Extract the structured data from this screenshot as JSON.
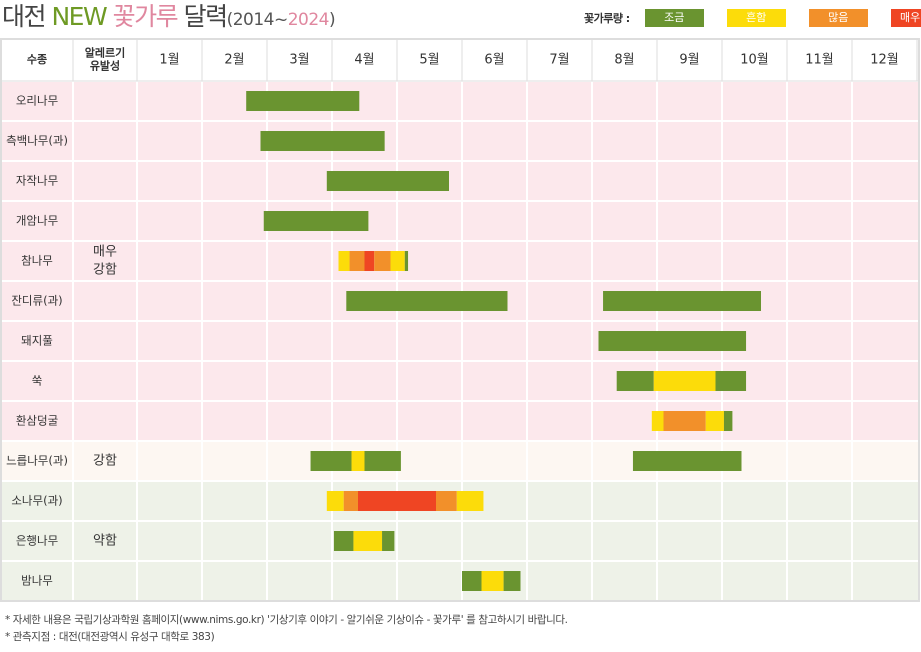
{
  "title": {
    "part1": "대전 ",
    "part2": "NEW ",
    "part3": "꽃가루",
    "part4": " 달력",
    "years_open": "(2014~",
    "years_end": "2024",
    "years_close": ")"
  },
  "legend": {
    "label": "꽃가루량 :",
    "items": [
      {
        "label": "조금",
        "color": "#6a9430"
      },
      {
        "label": "흔함",
        "color": "#fcdc0a"
      },
      {
        "label": "많음",
        "color": "#f2902a"
      },
      {
        "label": "매우많음",
        "color": "#ef4523"
      }
    ]
  },
  "table_headers": {
    "species": "수종",
    "allergy": "알레르기\n유발성"
  },
  "months": [
    "1월",
    "2월",
    "3월",
    "4월",
    "5월",
    "6월",
    "7월",
    "8월",
    "9월",
    "10월",
    "11월",
    "12월"
  ],
  "colors": {
    "low": "#6a9430",
    "common": "#fcdc0a",
    "many": "#f2902a",
    "very_many": "#ef4523",
    "bg_strong_very": "#fce8ec",
    "bg_strong": "#fdf7f2",
    "bg_weak": "#eef2e8",
    "grid": "#ffffff",
    "frame": "#dddddd"
  },
  "chart_data": {
    "type": "calendar",
    "x_axis": "month (decimal, 1.0 = 1월 시작)",
    "groups": [
      {
        "label": "매우\n강함",
        "key": "strong_very",
        "rows": 9
      },
      {
        "label": "강함",
        "key": "strong",
        "rows": 1
      },
      {
        "label": "약함",
        "key": "weak",
        "rows": 3
      }
    ],
    "species": [
      {
        "name": "오리나무",
        "segments": [
          {
            "from": 2.68,
            "to": 4.42,
            "level": "low"
          }
        ]
      },
      {
        "name": "측백나무(과)",
        "segments": [
          {
            "from": 2.9,
            "to": 4.81,
            "level": "low"
          }
        ]
      },
      {
        "name": "자작나무",
        "segments": [
          {
            "from": 3.92,
            "to": 5.8,
            "level": "low"
          }
        ]
      },
      {
        "name": "개암나무",
        "segments": [
          {
            "from": 2.95,
            "to": 4.56,
            "level": "low"
          }
        ]
      },
      {
        "name": "참나무",
        "segments": [
          {
            "from": 4.1,
            "to": 4.27,
            "level": "common"
          },
          {
            "from": 4.27,
            "to": 4.5,
            "level": "many"
          },
          {
            "from": 4.5,
            "to": 4.65,
            "level": "very_many"
          },
          {
            "from": 4.65,
            "to": 4.9,
            "level": "many"
          },
          {
            "from": 4.9,
            "to": 5.12,
            "level": "common"
          },
          {
            "from": 5.12,
            "to": 5.17,
            "level": "low"
          }
        ]
      },
      {
        "name": "잔디류(과)",
        "segments": [
          {
            "from": 4.22,
            "to": 6.7,
            "level": "low"
          },
          {
            "from": 8.17,
            "to": 10.6,
            "level": "low"
          }
        ]
      },
      {
        "name": "돼지풀",
        "segments": [
          {
            "from": 8.1,
            "to": 10.37,
            "level": "low"
          }
        ]
      },
      {
        "name": "쑥",
        "segments": [
          {
            "from": 8.38,
            "to": 8.95,
            "level": "low"
          },
          {
            "from": 8.95,
            "to": 9.9,
            "level": "common"
          },
          {
            "from": 9.9,
            "to": 10.37,
            "level": "low"
          }
        ]
      },
      {
        "name": "환삼덩굴",
        "segments": [
          {
            "from": 8.92,
            "to": 9.1,
            "level": "common"
          },
          {
            "from": 9.1,
            "to": 9.75,
            "level": "many"
          },
          {
            "from": 9.75,
            "to": 10.03,
            "level": "common"
          },
          {
            "from": 10.03,
            "to": 10.16,
            "level": "low"
          }
        ]
      },
      {
        "name": "느릅나무(과)",
        "segments": [
          {
            "from": 3.67,
            "to": 4.3,
            "level": "low"
          },
          {
            "from": 4.3,
            "to": 4.5,
            "level": "common"
          },
          {
            "from": 4.5,
            "to": 5.06,
            "level": "low"
          },
          {
            "from": 8.63,
            "to": 10.3,
            "level": "low"
          }
        ]
      },
      {
        "name": "소나무(과)",
        "segments": [
          {
            "from": 3.92,
            "to": 4.18,
            "level": "common"
          },
          {
            "from": 4.18,
            "to": 4.4,
            "level": "many"
          },
          {
            "from": 4.4,
            "to": 5.6,
            "level": "very_many"
          },
          {
            "from": 5.6,
            "to": 5.92,
            "level": "many"
          },
          {
            "from": 5.92,
            "to": 6.33,
            "level": "common"
          }
        ]
      },
      {
        "name": "은행나무",
        "segments": [
          {
            "from": 4.03,
            "to": 4.33,
            "level": "low"
          },
          {
            "from": 4.33,
            "to": 4.77,
            "level": "common"
          },
          {
            "from": 4.77,
            "to": 4.96,
            "level": "low"
          }
        ]
      },
      {
        "name": "밤나무",
        "segments": [
          {
            "from": 6.0,
            "to": 6.3,
            "level": "low"
          },
          {
            "from": 6.3,
            "to": 6.64,
            "level": "common"
          },
          {
            "from": 6.64,
            "to": 6.9,
            "level": "low"
          }
        ]
      }
    ]
  },
  "notes": [
    "* 자세한 내용은 국립기상과학원 홈페이지(www.nims.go.kr) '기상기후 이야기 - 알기쉬운 기상이슈 - 꽃가루' 를 참고하시기 바랍니다.",
    "* 관측지점 : 대전(대전광역시 유성구 대학로 383)"
  ]
}
